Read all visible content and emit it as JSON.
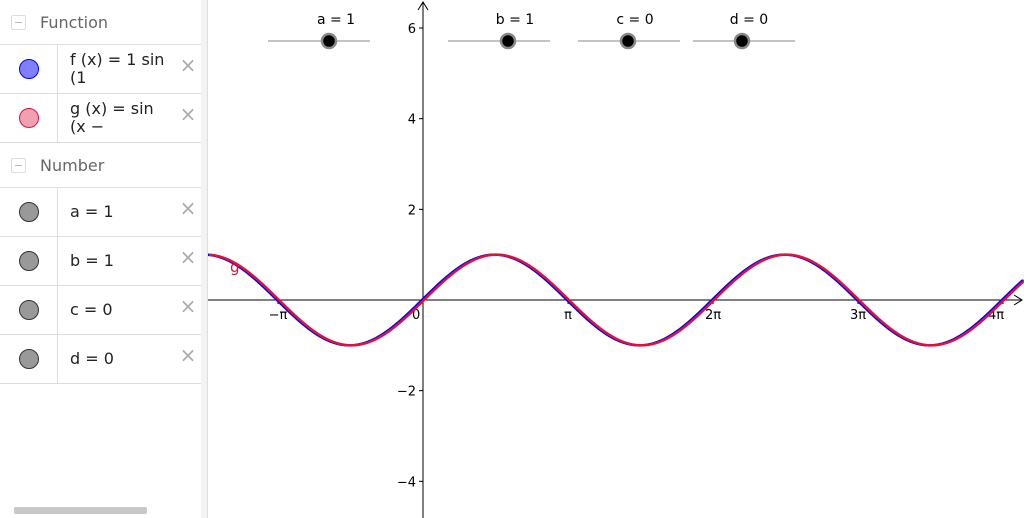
{
  "algebra": {
    "groups": [
      {
        "label": "Function",
        "items": [
          {
            "text": "f (x)  =  1  sin (1",
            "color": "#7f7fff",
            "border": "#0000ff"
          },
          {
            "text": "g (x)  =  sin (x −",
            "color": "#f0a0b0",
            "border": "#dc143c"
          }
        ]
      },
      {
        "label": "Number",
        "items": [
          {
            "text": "a  =  1",
            "color": "#999999",
            "border": "#333333"
          },
          {
            "text": "b  =  1",
            "color": "#999999",
            "border": "#333333"
          },
          {
            "text": "c  =  0",
            "color": "#999999",
            "border": "#333333"
          },
          {
            "text": "d  =  0",
            "color": "#999999",
            "border": "#333333"
          }
        ]
      }
    ],
    "delete_icon": "×"
  },
  "sliders": [
    {
      "label": "a = 1",
      "value": 1,
      "min": -5,
      "max": 5
    },
    {
      "label": "b = 1",
      "value": 1,
      "min": -5,
      "max": 5
    },
    {
      "label": "c = 0",
      "value": 0,
      "min": -5,
      "max": 5
    },
    {
      "label": "d = 0",
      "value": 0,
      "min": -5,
      "max": 5
    }
  ],
  "graph": {
    "x_ticks": [
      "−π",
      "π",
      "2π",
      "3π",
      "4π"
    ],
    "origin_label": "0",
    "y_ticks": [
      "6",
      "4",
      "2",
      "−2",
      "−4"
    ],
    "curve_label": "g",
    "f_color": "#0000ff",
    "g_color": "#dc143c"
  }
}
